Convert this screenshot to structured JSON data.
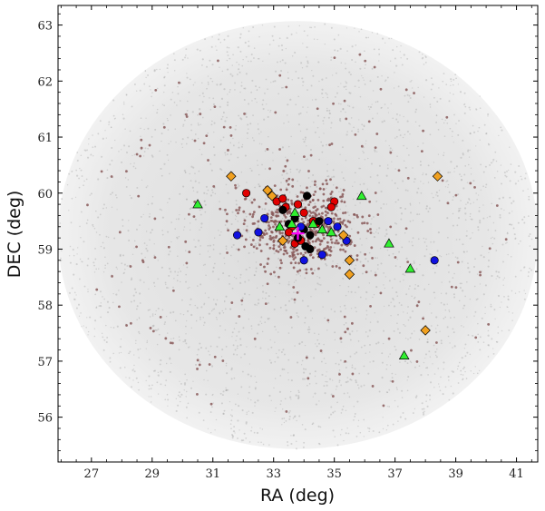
{
  "chart_data": {
    "type": "scatter",
    "xlabel": "RA (deg)",
    "ylabel": "DEC (deg)",
    "xlim": [
      25.9,
      41.7
    ],
    "ylim": [
      55.2,
      63.35
    ],
    "xticks": [
      27,
      29,
      31,
      33,
      35,
      37,
      39,
      41
    ],
    "yticks": [
      56,
      57,
      58,
      59,
      60,
      61,
      62,
      63
    ],
    "grid": false,
    "legend": "none",
    "field": {
      "center": [
        33.8,
        59.25
      ],
      "ra_halfwidth": 7.9,
      "dec_halfwidth": 3.82
    },
    "colors": {
      "field": "#c4c4c4",
      "background_points": "#8a5b5b",
      "red": "#e00000",
      "black": "#000000",
      "blue": "#1010e0",
      "orange": "#f0a020",
      "green": "#30f030",
      "center_marker": "#ff00ff"
    },
    "series": [
      {
        "marker": "circle",
        "color": "red",
        "points": [
          [
            32.1,
            60.0
          ],
          [
            33.1,
            59.85
          ],
          [
            33.3,
            59.9
          ],
          [
            33.4,
            59.75
          ],
          [
            33.8,
            59.8
          ],
          [
            34.0,
            59.65
          ],
          [
            34.3,
            59.5
          ],
          [
            34.4,
            59.45
          ],
          [
            35.0,
            59.85
          ],
          [
            34.9,
            59.75
          ],
          [
            33.6,
            59.4
          ],
          [
            33.5,
            59.3
          ],
          [
            33.7,
            59.1
          ],
          [
            33.9,
            59.15
          ]
        ]
      },
      {
        "marker": "circle",
        "color": "black",
        "points": [
          [
            34.1,
            59.95
          ],
          [
            33.3,
            59.7
          ],
          [
            33.5,
            59.45
          ],
          [
            33.7,
            59.55
          ],
          [
            34.0,
            59.35
          ],
          [
            34.2,
            59.25
          ],
          [
            33.8,
            59.2
          ],
          [
            34.05,
            59.05
          ],
          [
            34.2,
            59.0
          ],
          [
            34.5,
            59.5
          ]
        ]
      },
      {
        "marker": "circle",
        "color": "blue",
        "points": [
          [
            31.8,
            59.25
          ],
          [
            32.5,
            59.3
          ],
          [
            32.7,
            59.55
          ],
          [
            34.0,
            58.8
          ],
          [
            34.6,
            58.9
          ],
          [
            35.1,
            59.4
          ],
          [
            35.4,
            59.15
          ],
          [
            34.8,
            59.5
          ],
          [
            33.9,
            59.4
          ],
          [
            38.3,
            58.8
          ]
        ]
      },
      {
        "marker": "diamond",
        "color": "orange",
        "points": [
          [
            31.6,
            60.3
          ],
          [
            32.8,
            60.05
          ],
          [
            32.95,
            59.95
          ],
          [
            33.3,
            59.15
          ],
          [
            35.3,
            59.25
          ],
          [
            35.5,
            58.8
          ],
          [
            35.5,
            58.55
          ],
          [
            38.0,
            57.55
          ],
          [
            38.4,
            60.3
          ]
        ]
      },
      {
        "marker": "triangle",
        "color": "green",
        "points": [
          [
            30.5,
            59.8
          ],
          [
            33.7,
            59.65
          ],
          [
            33.2,
            59.4
          ],
          [
            33.6,
            59.45
          ],
          [
            34.3,
            59.45
          ],
          [
            34.6,
            59.35
          ],
          [
            34.9,
            59.3
          ],
          [
            35.9,
            59.95
          ],
          [
            36.8,
            59.1
          ],
          [
            37.5,
            58.65
          ],
          [
            37.3,
            57.1
          ]
        ]
      },
      {
        "marker": "star",
        "color": "center_marker",
        "points": [
          [
            33.8,
            59.28
          ]
        ]
      }
    ]
  }
}
